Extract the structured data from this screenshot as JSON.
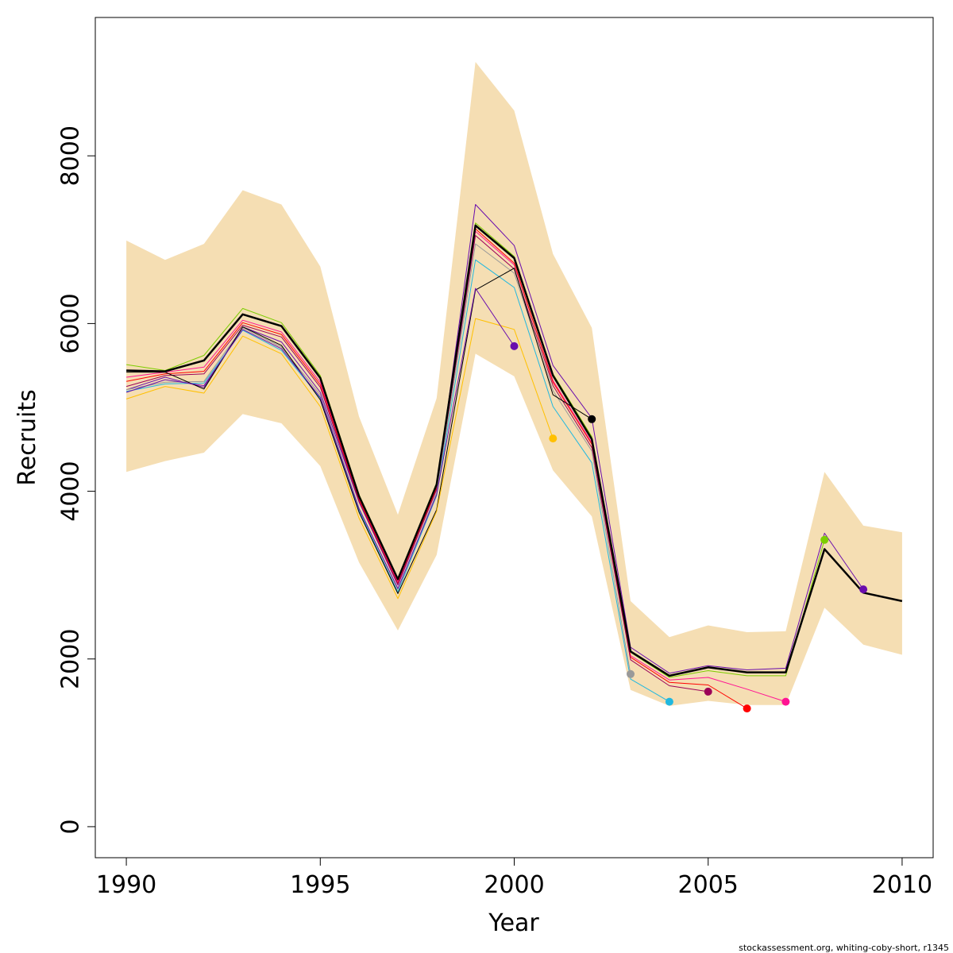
{
  "chart_data": {
    "type": "line",
    "title": "",
    "xlabel": "Year",
    "ylabel": "Recruits",
    "xlim": [
      1989.2,
      2010.8
    ],
    "ylim": [
      -370,
      9650
    ],
    "x_ticks": [
      1990,
      1995,
      2000,
      2005,
      2010
    ],
    "y_ticks": [
      0,
      2000,
      4000,
      6000,
      8000
    ],
    "x_tick_labels": [
      "1990",
      "1995",
      "2000",
      "2005",
      "2010"
    ],
    "y_tick_labels": [
      "0",
      "2000",
      "4000",
      "6000",
      "8000"
    ],
    "band": {
      "name": "confidence interval",
      "color": "#f5deb3",
      "x": [
        1990,
        1991,
        1992,
        1993,
        1994,
        1995,
        1996,
        1997,
        1998,
        1999,
        2000,
        2001,
        2002,
        2003,
        2004,
        2005,
        2006,
        2007,
        2008,
        2009,
        2010
      ],
      "lower": [
        4230,
        4360,
        4460,
        4920,
        4810,
        4300,
        3150,
        2340,
        3240,
        5640,
        5370,
        4250,
        3700,
        1630,
        1440,
        1500,
        1450,
        1450,
        2610,
        2170,
        2050
      ],
      "upper": [
        6990,
        6760,
        6950,
        7590,
        7420,
        6680,
        4890,
        3720,
        5110,
        9120,
        8540,
        6830,
        5950,
        2690,
        2260,
        2400,
        2320,
        2330,
        4230,
        3590,
        3510
      ]
    },
    "series": [
      {
        "name": "base",
        "color": "#000000",
        "width": 2.5,
        "marker": false,
        "x": [
          1990,
          1991,
          1992,
          1993,
          1994,
          1995,
          1996,
          1997,
          1998,
          1999,
          2000,
          2001,
          2002,
          2003,
          2004,
          2005,
          2006,
          2007,
          2008,
          2009,
          2010
        ],
        "values": [
          5440,
          5430,
          5560,
          6110,
          5970,
          5350,
          3940,
          2950,
          4080,
          7170,
          6780,
          5380,
          4620,
          2090,
          1800,
          1900,
          1840,
          1840,
          3310,
          2790,
          2690
        ]
      },
      {
        "name": "retro-1",
        "color": "#6a0dad",
        "width": 1,
        "marker": true,
        "x": [
          1990,
          1991,
          1992,
          1993,
          1994,
          1995,
          1996,
          1997,
          1998,
          1999,
          2000,
          2001,
          2002,
          2003,
          2004,
          2005,
          2006,
          2007,
          2008,
          2009
        ],
        "values": [
          5210,
          5360,
          5240,
          5960,
          5780,
          5180,
          3870,
          2880,
          4030,
          7420,
          6930,
          5500,
          4870,
          2140,
          1830,
          1920,
          1870,
          1890,
          3500,
          2830
        ]
      },
      {
        "name": "retro-2",
        "color": "#7ccd00",
        "width": 1,
        "marker": true,
        "x": [
          1990,
          1991,
          1992,
          1993,
          1994,
          1995,
          1996,
          1997,
          1998,
          1999,
          2000,
          2001,
          2002,
          2003,
          2004,
          2005,
          2006,
          2007,
          2008
        ],
        "values": [
          5510,
          5440,
          5620,
          6180,
          6010,
          5380,
          3960,
          2960,
          4100,
          7200,
          6800,
          5400,
          4650,
          2080,
          1780,
          1860,
          1800,
          1800,
          3420
        ]
      },
      {
        "name": "retro-3",
        "color": "#ff1493",
        "width": 1,
        "marker": true,
        "x": [
          1990,
          1991,
          1992,
          1993,
          1994,
          1995,
          1996,
          1997,
          1998,
          1999,
          2000,
          2001,
          2002,
          2003,
          2004,
          2005,
          2006,
          2007
        ],
        "values": [
          5360,
          5420,
          5480,
          6040,
          5900,
          5300,
          3920,
          2920,
          4060,
          7100,
          6700,
          5320,
          4580,
          2040,
          1750,
          1780,
          1640,
          1490
        ]
      },
      {
        "name": "retro-4",
        "color": "#ff0000",
        "width": 1,
        "marker": true,
        "x": [
          1990,
          1991,
          1992,
          1993,
          1994,
          1995,
          1996,
          1997,
          1998,
          1999,
          2000,
          2001,
          2002,
          2003,
          2004,
          2005,
          2006
        ],
        "values": [
          5310,
          5400,
          5430,
          6010,
          5870,
          5270,
          3900,
          2900,
          4040,
          7130,
          6720,
          5300,
          4560,
          2020,
          1720,
          1690,
          1410
        ]
      },
      {
        "name": "retro-5",
        "color": "#9b0058",
        "width": 1,
        "marker": true,
        "x": [
          1990,
          1991,
          1992,
          1993,
          1994,
          1995,
          1996,
          1997,
          1998,
          1999,
          2000,
          2001,
          2002,
          2003,
          2004,
          2005
        ],
        "values": [
          5250,
          5380,
          5400,
          5980,
          5840,
          5240,
          3880,
          2890,
          4020,
          7050,
          6650,
          5260,
          4520,
          1990,
          1680,
          1610
        ]
      },
      {
        "name": "retro-6",
        "color": "#20b8e0",
        "width": 1,
        "marker": true,
        "x": [
          1990,
          1991,
          1992,
          1993,
          1994,
          1995,
          1996,
          1997,
          1998,
          1999,
          2000,
          2001,
          2002,
          2003,
          2004
        ],
        "values": [
          5190,
          5280,
          5290,
          5920,
          5680,
          5110,
          3770,
          2800,
          3950,
          6760,
          6430,
          5010,
          4340,
          1760,
          1490
        ]
      },
      {
        "name": "retro-7",
        "color": "#999999",
        "width": 1,
        "marker": true,
        "x": [
          1990,
          1991,
          1992,
          1993,
          1994,
          1995,
          1996,
          1997,
          1998,
          1999,
          2000,
          2001,
          2002,
          2003
        ],
        "values": [
          5210,
          5300,
          5310,
          5950,
          5720,
          5150,
          3800,
          2830,
          3980,
          6950,
          6600,
          5200,
          4480,
          1820
        ]
      },
      {
        "name": "retro-8",
        "color": "#000000",
        "width": 1,
        "marker": true,
        "x": [
          1990,
          1991,
          1992,
          1993,
          1994,
          1995,
          1996,
          1997,
          1998,
          1999,
          2000,
          2001,
          2002
        ],
        "values": [
          5420,
          5420,
          5220,
          5960,
          5740,
          5090,
          3750,
          2780,
          3780,
          6400,
          6660,
          5150,
          4860
        ]
      },
      {
        "name": "retro-9",
        "color": "#ffc000",
        "width": 1,
        "marker": true,
        "x": [
          1990,
          1991,
          1992,
          1993,
          1994,
          1995,
          1996,
          1997,
          1998,
          1999,
          2000,
          2001
        ],
        "values": [
          5100,
          5250,
          5170,
          5850,
          5640,
          5010,
          3680,
          2720,
          3760,
          6060,
          5930,
          4630
        ]
      },
      {
        "name": "retro-10",
        "color": "#6a0dad",
        "width": 1,
        "marker": true,
        "x": [
          1990,
          1991,
          1992,
          1993,
          1994,
          1995,
          1996,
          1997,
          1998,
          1999,
          2000
        ],
        "values": [
          5180,
          5330,
          5260,
          5930,
          5700,
          5120,
          3790,
          2840,
          3960,
          6420,
          5730
        ]
      }
    ]
  },
  "footer": {
    "credit": "stockassessment.org, whiting-coby-short, r1345"
  }
}
